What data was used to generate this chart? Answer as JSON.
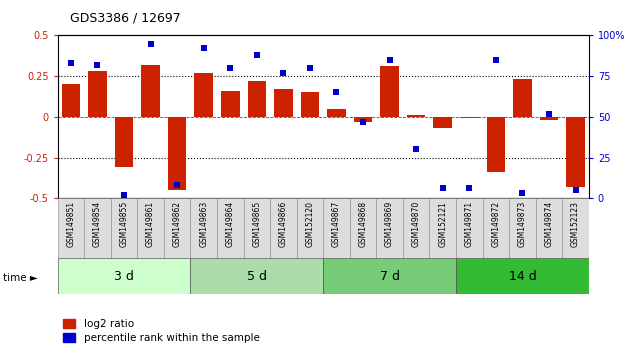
{
  "title": "GDS3386 / 12697",
  "samples": [
    "GSM149851",
    "GSM149854",
    "GSM149855",
    "GSM149861",
    "GSM149862",
    "GSM149863",
    "GSM149864",
    "GSM149865",
    "GSM149866",
    "GSM152120",
    "GSM149867",
    "GSM149868",
    "GSM149869",
    "GSM149870",
    "GSM152121",
    "GSM149871",
    "GSM149872",
    "GSM149873",
    "GSM149874",
    "GSM152123"
  ],
  "log2_ratio": [
    0.2,
    0.28,
    -0.31,
    0.32,
    -0.45,
    0.27,
    0.16,
    0.22,
    0.17,
    0.15,
    0.05,
    -0.03,
    0.31,
    0.01,
    -0.07,
    -0.01,
    -0.34,
    0.23,
    -0.02,
    -0.43
  ],
  "percentile": [
    83,
    82,
    2,
    95,
    8,
    92,
    80,
    88,
    77,
    80,
    65,
    47,
    85,
    30,
    6,
    6,
    85,
    3,
    52,
    5
  ],
  "groups": [
    {
      "label": "3 d",
      "start": 0,
      "end": 5
    },
    {
      "label": "5 d",
      "start": 5,
      "end": 10
    },
    {
      "label": "7 d",
      "start": 10,
      "end": 15
    },
    {
      "label": "14 d",
      "start": 15,
      "end": 20
    }
  ],
  "group_colors": [
    "#ccffcc",
    "#aaddaa",
    "#77cc77",
    "#33bb33"
  ],
  "bar_color": "#cc2200",
  "dot_color": "#0000cc",
  "ylim": [
    -0.5,
    0.5
  ],
  "yticks": [
    -0.5,
    -0.25,
    0,
    0.25,
    0.5
  ],
  "ytick_labels": [
    "-0.5",
    "-0.25",
    "0",
    "0.25",
    "0.5"
  ],
  "y2ticks": [
    0,
    25,
    50,
    75,
    100
  ],
  "y2tick_labels": [
    "0",
    "25",
    "50",
    "75",
    "100%"
  ],
  "hlines": [
    0.25,
    -0.25
  ],
  "legend_bar_label": "log2 ratio",
  "legend_dot_label": "percentile rank within the sample"
}
